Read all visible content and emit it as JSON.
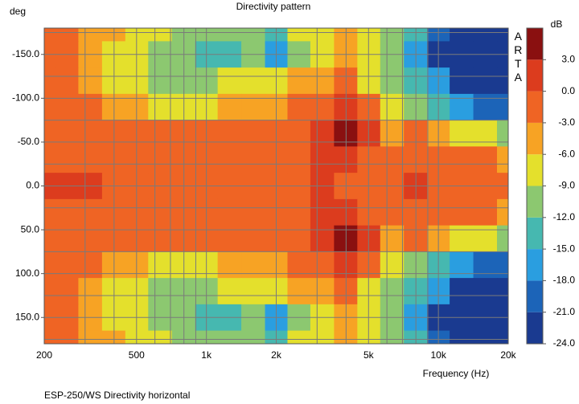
{
  "chart_data": {
    "type": "heatmap",
    "title": "Directivity pattern",
    "ylabel": "deg",
    "xlabel": "Frequency (Hz)",
    "footer": "ESP-250/WS  Directivity horizontal",
    "watermark": "ARTA",
    "xscale": "log",
    "xlim": [
      200,
      20000
    ],
    "xticks": [
      200,
      500,
      {
        "value": 1000,
        "label": "1k"
      },
      {
        "value": 2000,
        "label": "2k"
      },
      {
        "value": 5000,
        "label": "5k"
      },
      {
        "value": 10000,
        "label": "10k"
      },
      {
        "value": 20000,
        "label": "20k"
      }
    ],
    "xminor": [
      300,
      400,
      600,
      700,
      800,
      900,
      3000,
      4000,
      6000,
      7000,
      8000,
      9000
    ],
    "ylim": [
      -180,
      180
    ],
    "yticks": [
      {
        "value": -150,
        "label": "-150.0"
      },
      {
        "value": -100,
        "label": "-100.0"
      },
      {
        "value": -50,
        "label": "-50.0"
      },
      {
        "value": 0,
        "label": "0.0"
      },
      {
        "value": 50,
        "label": "50.0"
      },
      {
        "value": 100,
        "label": "100.0"
      },
      {
        "value": 150,
        "label": "150.0"
      }
    ],
    "yminor": [
      -175,
      -125,
      -75,
      -25,
      25,
      75,
      125,
      175
    ],
    "grid": true,
    "x": [
      200,
      250,
      315,
      400,
      500,
      630,
      800,
      1000,
      1250,
      1600,
      2000,
      2500,
      3150,
      4000,
      5000,
      6300,
      8000,
      10000,
      12500,
      16000,
      20000
    ],
    "y": [
      -180,
      -150,
      -120,
      -90,
      -60,
      -30,
      0,
      30,
      60,
      90,
      120,
      150,
      180
    ],
    "z": [
      [
        -1.5,
        -2,
        -4,
        -6,
        -8,
        -9,
        -10,
        -12,
        -12,
        -11,
        -13,
        -9,
        -7,
        -5,
        -8,
        -11,
        -15,
        -21,
        -24,
        -24,
        -24
      ],
      [
        -1.5,
        -2,
        -4,
        -7,
        -9,
        -10,
        -11,
        -13,
        -14,
        -12,
        -17,
        -11,
        -8,
        -4,
        -9,
        -12,
        -16,
        -22,
        -24,
        -24,
        -24
      ],
      [
        -1,
        -1.5,
        -4,
        -7,
        -8,
        -10,
        -10,
        -10,
        -8,
        -7,
        -9,
        -6,
        -4,
        -2,
        -7,
        -10,
        -14,
        -18,
        -22,
        -23,
        -23
      ],
      [
        -1,
        -1,
        -1.5,
        -4,
        -5,
        -7,
        -8,
        -8,
        -6,
        -4,
        -4,
        -2,
        -1,
        1,
        -3,
        -7,
        -10,
        -13,
        -17,
        -19,
        -20
      ],
      [
        -1,
        -1,
        -1.5,
        -1.5,
        -1.5,
        -2,
        -2,
        -2,
        -2,
        -1.5,
        -1.5,
        -1,
        1,
        4,
        1,
        -4,
        -3,
        -5,
        -7,
        -8,
        -10
      ],
      [
        -1,
        -1,
        -1,
        -1,
        -1,
        -1,
        -1,
        -1,
        -1,
        -1,
        -1,
        -1,
        1,
        1,
        -1.5,
        -2,
        -1,
        -1.5,
        -2,
        -2.5,
        -3.5
      ],
      [
        1,
        1,
        0.5,
        -1,
        -1,
        -1,
        -1,
        -1,
        -1,
        -1,
        -1.5,
        -1,
        1,
        -1,
        -1.5,
        -1,
        1,
        -1,
        -1,
        -1,
        -1
      ],
      [
        -1,
        -1,
        -1,
        -1,
        -1,
        -1,
        -1,
        -1,
        -1,
        -1,
        -1,
        -1,
        1,
        1,
        -1.5,
        -2,
        -1,
        -1.5,
        -2,
        -2.5,
        -3.5
      ],
      [
        -1,
        -1,
        -1.5,
        -1.5,
        -1.5,
        -2,
        -2,
        -2,
        -2,
        -1.5,
        -1.5,
        -1,
        1,
        4,
        1,
        -4,
        -3,
        -5,
        -7,
        -8,
        -10
      ],
      [
        -1,
        -1,
        -1.5,
        -4,
        -5,
        -7,
        -8,
        -8,
        -6,
        -4,
        -4,
        -2,
        -1,
        1,
        -3,
        -7,
        -10,
        -13,
        -17,
        -19,
        -20
      ],
      [
        -1,
        -1.5,
        -4,
        -7,
        -8,
        -10,
        -10,
        -10,
        -8,
        -7,
        -9,
        -6,
        -4,
        -2,
        -7,
        -10,
        -14,
        -18,
        -22,
        -23,
        -23
      ],
      [
        -1.5,
        -2,
        -4,
        -7,
        -9,
        -10,
        -11,
        -13,
        -14,
        -12,
        -17,
        -11,
        -8,
        -4,
        -9,
        -12,
        -16,
        -22,
        -24,
        -24,
        -24
      ],
      [
        -1.5,
        -2,
        -4,
        -6,
        -8,
        -9,
        -10,
        -12,
        -12,
        -11,
        -13,
        -9,
        -7,
        -5,
        -8,
        -11,
        -15,
        -21,
        -24,
        -24,
        -24
      ]
    ],
    "colorbar_label": "dB",
    "clevels": [
      -24,
      -21,
      -18,
      -15,
      -12,
      -9,
      -6,
      -3,
      0,
      3,
      6
    ],
    "colors": [
      "#1a3a90",
      "#1c64b8",
      "#2a9ee0",
      "#46b8b0",
      "#8cc870",
      "#e4e02c",
      "#f7a324",
      "#ef6424",
      "#dc3c1e",
      "#8a1010"
    ],
    "cticks": [
      {
        "value": 3,
        "label": "3.0"
      },
      {
        "value": 0,
        "label": "0.0"
      },
      {
        "value": -3,
        "label": "-3.0"
      },
      {
        "value": -6,
        "label": "-6.0"
      },
      {
        "value": -9,
        "label": "-9.0"
      },
      {
        "value": -12,
        "label": "-12.0"
      },
      {
        "value": -15,
        "label": "-15.0"
      },
      {
        "value": -18,
        "label": "-18.0"
      },
      {
        "value": -21,
        "label": "-21.0"
      },
      {
        "value": -24,
        "label": "-24.0"
      }
    ]
  }
}
